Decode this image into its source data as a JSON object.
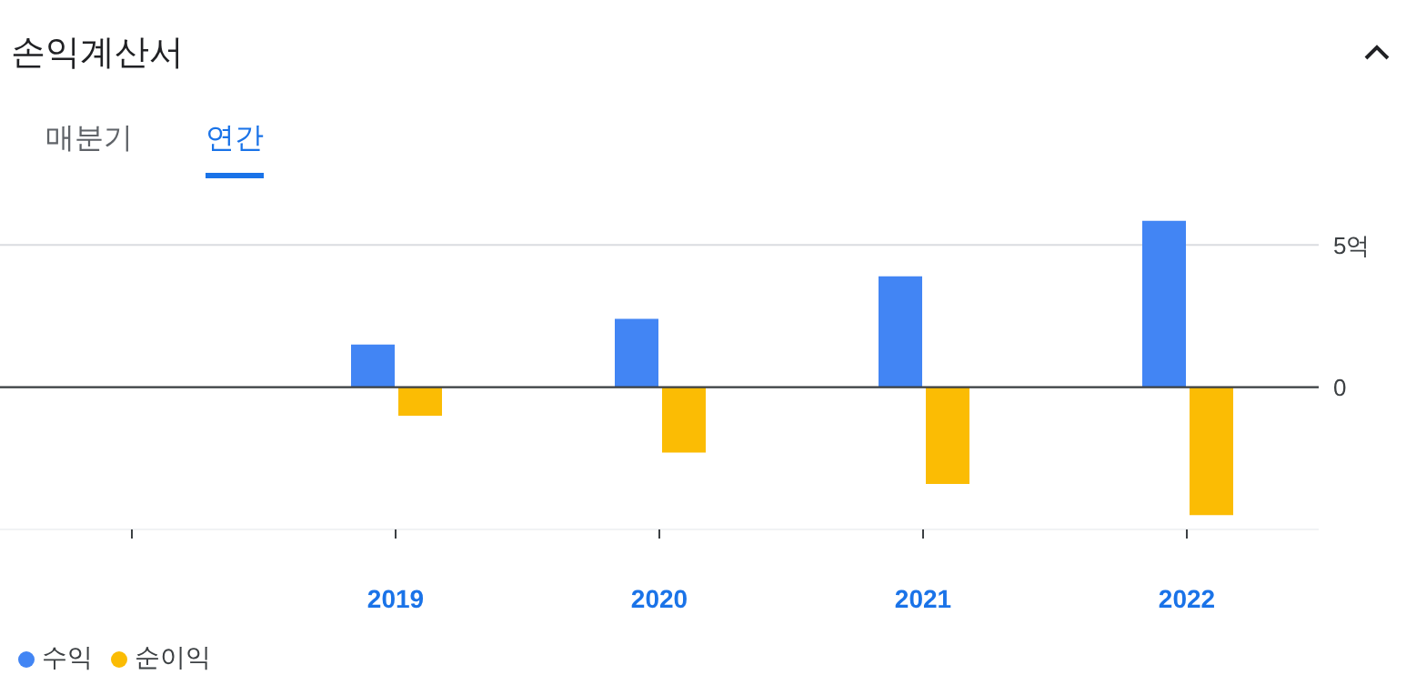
{
  "chart_data": {
    "type": "bar",
    "title": "손익계산서",
    "annotations": [
      "매분기",
      "연간"
    ],
    "categories": [
      null,
      "2019",
      "2020",
      "2021",
      "2022"
    ],
    "series": [
      {
        "name": "수익",
        "color": "#4285f4",
        "values": [
          null,
          1.5,
          2.4,
          3.9,
          5.85
        ]
      },
      {
        "name": "순이익",
        "color": "#fbbc04",
        "values": [
          null,
          -1.0,
          -2.3,
          -3.4,
          -4.5
        ]
      }
    ],
    "ylim": [
      -5,
      6
    ],
    "yticks": [
      {
        "value": 5,
        "label": "5억"
      },
      0
    ],
    "grid": "y",
    "legend": "bottom left",
    "ref_lines": [
      {
        "axis": "y",
        "value": 0,
        "color": "#3c4043"
      }
    ]
  }
}
